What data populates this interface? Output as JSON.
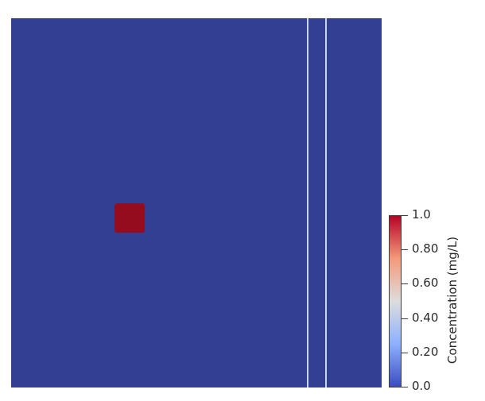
{
  "view": {
    "background_color": "#ffffff",
    "domain_color": "#333f93",
    "divider_color": "#c9d4ee",
    "source_color": "#960c1f"
  },
  "colorbar": {
    "title": "Concentration (mg/L)",
    "min": 0.0,
    "max": 1.0,
    "colormap": "coolwarm",
    "colors": [
      "#3b4cc0",
      "#8db0fe",
      "#dddddd",
      "#f49a7b",
      "#b40426"
    ],
    "ticks": [
      {
        "value": 1.0,
        "label": "1.0"
      },
      {
        "value": 0.8,
        "label": "0.80"
      },
      {
        "value": 0.6,
        "label": "0.60"
      },
      {
        "value": 0.4,
        "label": "0.40"
      },
      {
        "value": 0.2,
        "label": "0.20"
      },
      {
        "value": 0.0,
        "label": "0.0"
      }
    ]
  }
}
